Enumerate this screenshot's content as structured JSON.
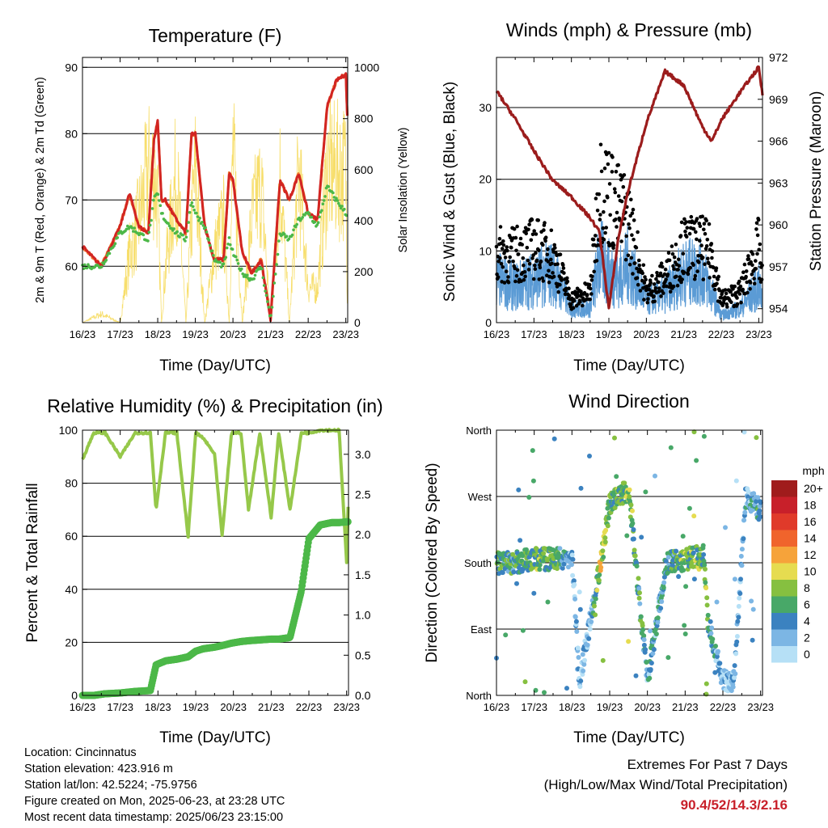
{
  "xticks": [
    "16/23",
    "17/23",
    "18/23",
    "19/23",
    "20/23",
    "21/23",
    "22/23",
    "23/23"
  ],
  "xlabel": "Time (Day/UTC)",
  "panels": {
    "temperature": {
      "title": "Temperature (F)",
      "ylabel_left": "2m & 9m T (Red, Orange) & 2m Td (Green)",
      "ylabel_right": "Solar Insolation (Yellow)",
      "yticks_left": [
        "60",
        "70",
        "80",
        "90"
      ],
      "yticks_right": [
        "0",
        "200",
        "400",
        "600",
        "800",
        "1000"
      ]
    },
    "winds": {
      "title": "Winds (mph) & Pressure (mb)",
      "ylabel_left": "Sonic Wind & Gust (Blue, Black)",
      "ylabel_right": "Station Pressure (Maroon)",
      "yticks_left": [
        "0",
        "10",
        "20",
        "30"
      ],
      "yticks_right": [
        "954",
        "957",
        "960",
        "963",
        "966",
        "969",
        "972"
      ]
    },
    "humidity": {
      "title": "Relative Humidity (%) & Precipitation (in)",
      "ylabel_left": "Percent & Total Rainfall",
      "yticks_left": [
        "0",
        "20",
        "40",
        "60",
        "80",
        "100"
      ],
      "yticks_right": [
        "0.0",
        "0.5",
        "1.0",
        "1.5",
        "2.0",
        "2.5",
        "3.0"
      ]
    },
    "direction": {
      "title": "Wind Direction",
      "ylabel_left": "Direction (Colored By Speed)",
      "yticks_left": [
        "North",
        "East",
        "South",
        "West",
        "North"
      ],
      "legend_title": "mph",
      "legend_labels": [
        "20+",
        "18",
        "16",
        "14",
        "12",
        "10",
        "8",
        "6",
        "4",
        "2",
        "0"
      ],
      "legend_colors": [
        "#a01c1c",
        "#c8202a",
        "#e03a2a",
        "#f0642c",
        "#f6a33a",
        "#e6dc50",
        "#86c040",
        "#48a868",
        "#3b82c0",
        "#7cb6e4",
        "#b6e0f6"
      ]
    }
  },
  "chart_data": [
    {
      "type": "line",
      "title": "Temperature (F)",
      "xlabel": "Time (Day/UTC)",
      "ylabel": "2m & 9m T (Red, Orange) & 2m Td (Green)",
      "y2label": "Solar Insolation (Yellow)",
      "x": [
        16,
        16.5,
        17,
        17.25,
        17.5,
        17.75,
        17.9,
        18,
        18.1,
        18.2,
        18.5,
        18.75,
        18.9,
        19,
        19.25,
        19.5,
        19.75,
        19.9,
        20,
        20.25,
        20.5,
        20.75,
        21,
        21.25,
        21.5,
        21.75,
        22,
        22.25,
        22.5,
        22.75,
        23,
        23.05
      ],
      "xlim": [
        16,
        23.05
      ],
      "ylim": [
        51.5,
        91.5
      ],
      "y2lim": [
        0,
        1040
      ],
      "series": [
        {
          "name": "2m T",
          "values": [
            63,
            60,
            66,
            71,
            66,
            65,
            79,
            82,
            70,
            70,
            67,
            65,
            80,
            80,
            66,
            61,
            61,
            74,
            73,
            62,
            59,
            61,
            52,
            73,
            70,
            74,
            68,
            67,
            84,
            88,
            89,
            81
          ]
        },
        {
          "name": "2m Td",
          "values": [
            60,
            60,
            65,
            66,
            65,
            64,
            70,
            71,
            68,
            67,
            65,
            64,
            70,
            68,
            66,
            61,
            60,
            64,
            62,
            59,
            58,
            60,
            52,
            65,
            64,
            67,
            68,
            66,
            72,
            70,
            68,
            67
          ]
        },
        {
          "name": "Solar Insolation",
          "values": [
            0,
            50,
            0,
            400,
            600,
            880,
            880,
            700,
            0,
            300,
            880,
            0,
            600,
            880,
            0,
            400,
            600,
            0,
            1000,
            0,
            600,
            800,
            0,
            850,
            0,
            880,
            200,
            200,
            880,
            880,
            880,
            0
          ]
        }
      ]
    },
    {
      "type": "line",
      "title": "Winds (mph) & Pressure (mb)",
      "xlabel": "Time (Day/UTC)",
      "ylabel": "Sonic Wind & Gust (Blue, Black)",
      "y2label": "Station Pressure (Maroon)",
      "x": [
        16,
        16.5,
        17,
        17.5,
        18,
        18.5,
        18.75,
        19,
        19.25,
        19.5,
        20,
        20.5,
        21,
        21.5,
        21.75,
        22,
        22.5,
        23,
        23.1
      ],
      "xlim": [
        16,
        23.1
      ],
      "ylim": [
        0,
        37
      ],
      "y2lim": [
        953,
        972
      ],
      "series": [
        {
          "name": "Sonic Wind",
          "values": [
            6,
            5,
            6,
            7,
            2,
            2,
            9,
            7,
            6,
            8,
            3,
            4,
            7,
            7,
            4,
            1,
            2,
            5,
            3
          ]
        },
        {
          "name": "Gust",
          "values": [
            9,
            9,
            10,
            9,
            3,
            4,
            18,
            17,
            15,
            14,
            4,
            6,
            10,
            10,
            9,
            3,
            4,
            10,
            5
          ]
        },
        {
          "name": "Station Pressure",
          "values": [
            969.6,
            967.6,
            965.3,
            963.2,
            962,
            960.5,
            959.5,
            954,
            959,
            962.3,
            967.3,
            971,
            970,
            967,
            966,
            967.5,
            969.5,
            971.3,
            969.3
          ]
        }
      ]
    },
    {
      "type": "line",
      "title": "Relative Humidity (%) & Precipitation (in)",
      "xlabel": "Time (Day/UTC)",
      "ylabel": "Percent & Total Rainfall",
      "x": [
        16,
        16.3,
        16.6,
        17,
        17.4,
        17.8,
        17.95,
        18.2,
        18.5,
        18.8,
        19,
        19.2,
        19.5,
        19.7,
        19.95,
        20.2,
        20.4,
        20.7,
        21,
        21.2,
        21.5,
        21.8,
        22,
        22.3,
        22.6,
        22.8,
        23,
        23.05
      ],
      "xlim": [
        16,
        23.05
      ],
      "ylim": [
        0,
        100
      ],
      "y2lim": [
        0,
        3.3
      ],
      "series": [
        {
          "name": "Relative Humidity",
          "values": [
            89,
            99,
            99,
            90,
            99,
            99,
            70,
            99,
            99,
            60,
            99,
            97,
            91,
            60,
            99,
            99,
            70,
            99,
            67,
            99,
            70,
            99,
            99,
            100,
            100,
            100,
            50,
            76
          ]
        },
        {
          "name": "Total Precipitation",
          "values": [
            0,
            0,
            0.02,
            0.03,
            0.05,
            0.06,
            0.38,
            0.43,
            0.45,
            0.48,
            0.55,
            0.58,
            0.6,
            0.62,
            0.65,
            0.67,
            0.68,
            0.69,
            0.7,
            0.7,
            0.72,
            1.3,
            1.95,
            2.12,
            2.15,
            2.15,
            2.16,
            2.16
          ]
        }
      ]
    },
    {
      "type": "scatter",
      "title": "Wind Direction",
      "xlabel": "Time (Day/UTC)",
      "ylabel": "Direction (Colored By Speed)",
      "x": [
        16,
        16.5,
        17,
        17.5,
        18,
        18.2,
        18.8,
        19,
        19.5,
        20,
        20.5,
        21,
        21.5,
        21.6,
        22,
        22.3,
        22.6,
        23
      ],
      "xlim": [
        16,
        23.05
      ],
      "ylim": [
        0,
        360
      ],
      "series": [
        {
          "name": "Direction",
          "values": [
            180,
            180,
            185,
            185,
            190,
            20,
            190,
            260,
            280,
            20,
            180,
            185,
            190,
            100,
            20,
            20,
            270,
            250
          ]
        }
      ]
    }
  ],
  "footer": {
    "lines": [
      "Location: Cincinnatus",
      "Station elevation: 423.916 m",
      "Station lat/lon: 42.5224; -75.9756",
      "Figure created on Mon, 2025-06-23, at 23:28 UTC",
      "Most recent data timestamp: 2025/06/23 23:15:00"
    ],
    "extremes_title": "Extremes For Past 7 Days",
    "extremes_subtitle": "(High/Low/Max Wind/Total Precipitation)",
    "extremes_values": "90.4/52/14.3/2.16"
  }
}
